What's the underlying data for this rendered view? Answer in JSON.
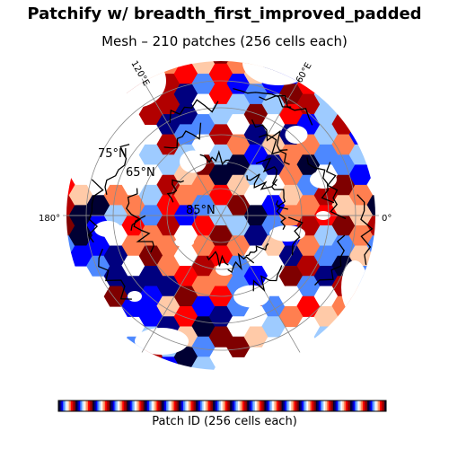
{
  "title": "Patchify w/ breadth_first_improved_padded",
  "subtitle": "Mesh – 210 patches (256 cells each)",
  "colorbar_label": "Patch ID (256 cells each)",
  "map": {
    "projection": "north-polar-stereographic",
    "lon_labels": [
      "120°E",
      "60°E",
      "180°",
      "0°"
    ],
    "lat_labels": [
      "75°N",
      "65°N",
      "85°N"
    ],
    "patch_count": 210,
    "cells_per_patch": 256,
    "colormap": [
      "#000033",
      "#00007f",
      "#0000ff",
      "#4d88ff",
      "#9ecbff",
      "#ffffff",
      "#ffcaa8",
      "#ff7f50",
      "#ff0000",
      "#b20000",
      "#7f0000"
    ]
  }
}
